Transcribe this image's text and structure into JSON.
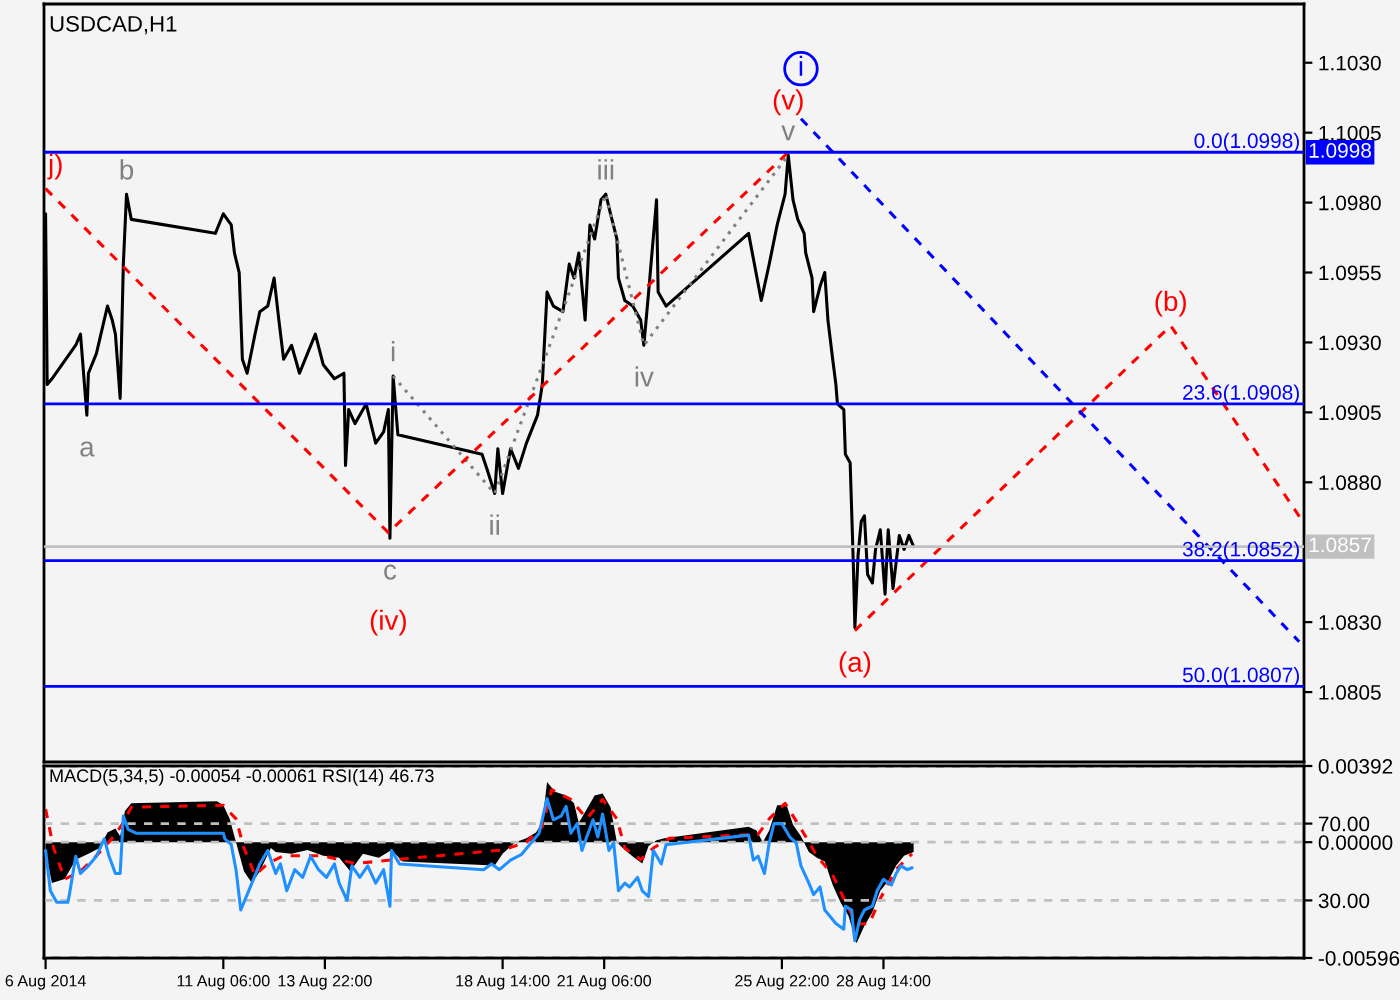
{
  "chart_data": [
    {
      "type": "line",
      "title": "USDCAD,H1",
      "tick_labels": "y",
      "xlim": [
        "2014-08-06T13:00",
        "2014-09-08T15:00"
      ],
      "ylim": [
        1.078,
        1.1051
      ],
      "yticks": [
        {
          "value": 1.103,
          "label": "1.1030"
        },
        1.1005,
        {
          "value": 1.098,
          "label": "1.0980"
        },
        1.0955,
        {
          "value": 1.093,
          "label": "1.0930"
        },
        1.0905,
        {
          "value": 1.088,
          "label": "1.0880"
        },
        {
          "value": 1.083,
          "label": "1.0830"
        },
        1.0805
      ],
      "ref_lines": [
        {
          "axis": "y",
          "value": 1.0998,
          "label": "0.0(1.0998)",
          "color": "#0000ff"
        },
        {
          "axis": "y",
          "value": 1.0908,
          "label": "23.6(1.0908)",
          "color": "#0000ff"
        },
        {
          "axis": "y",
          "value": 1.0852,
          "label": "38.2(1.0852)",
          "color": "#0000ff"
        },
        {
          "axis": "y",
          "value": 1.0807,
          "label": "50.0(1.0807)",
          "color": "#0000ff"
        },
        {
          "axis": "y",
          "value": 1.0857,
          "color": "#c0c0c0"
        }
      ],
      "series": [
        {
          "color": "#000000",
          "x": [
            "2014-08-06T14:00",
            "2014-08-06T15:00",
            "2014-08-06T18:00",
            "2014-08-07T09:00",
            "2014-08-07T12:00",
            "2014-08-07T16:00",
            "2014-08-07T17:00",
            "2014-08-07T22:00",
            "2014-08-08T05:00",
            "2014-08-08T08:00",
            "2014-08-08T10:00",
            "2014-08-08T13:00",
            "2014-08-08T15:00",
            "2014-08-08T17:00",
            "2014-08-08T20:00",
            "2014-08-11T01:00",
            "2014-08-11T06:00",
            "2014-08-11T11:00",
            "2014-08-11T13:00",
            "2014-08-11T16:00",
            "2014-08-11T18:00",
            "2014-08-11T21:00",
            "2014-08-12T02:00",
            "2014-08-12T05:00",
            "2014-08-12T10:00",
            "2014-08-12T14:00",
            "2014-08-12T17:00",
            "2014-08-12T20:00",
            "2014-08-13T01:00",
            "2014-08-13T06:00",
            "2014-08-13T11:00",
            "2014-08-13T16:00",
            "2014-08-13T21:00",
            "2014-08-14T04:00",
            "2014-08-14T10:00",
            "2014-08-14T11:00",
            "2014-08-14T13:00",
            "2014-08-14T17:00",
            "2014-08-15T00:00",
            "2014-08-15T06:00",
            "2014-08-15T11:00",
            "2014-08-15T14:00",
            "2014-08-15T15:00",
            "2014-08-15T17:00",
            "2014-08-15T20:00",
            "2014-08-18T01:00",
            "2014-08-18T04:00",
            "2014-08-18T09:00",
            "2014-08-18T11:00",
            "2014-08-18T14:00",
            "2014-08-18T19:00",
            "2014-08-19T00:00",
            "2014-08-19T05:00",
            "2014-08-19T12:00",
            "2014-08-19T15:00",
            "2014-08-19T18:00",
            "2014-08-19T22:00",
            "2014-08-20T04:00",
            "2014-08-20T08:00",
            "2014-08-20T11:00",
            "2014-08-20T14:00",
            "2014-08-20T18:00",
            "2014-08-20T21:00",
            "2014-08-21T00:00",
            "2014-08-21T04:00",
            "2014-08-21T07:00",
            "2014-08-21T10:00",
            "2014-08-21T14:00",
            "2014-08-21T15:00",
            "2014-08-21T19:00",
            "2014-08-22T00:00",
            "2014-08-22T05:00",
            "2014-08-22T07:00",
            "2014-08-22T10:00",
            "2014-08-22T15:00",
            "2014-08-22T16:00",
            "2014-08-22T21:00",
            "2014-08-25T01:00",
            "2014-08-25T04:00",
            "2014-08-25T09:00",
            "2014-08-25T14:00",
            "2014-08-25T19:00",
            "2014-08-26T00:00",
            "2014-08-26T02:00",
            "2014-08-26T05:00",
            "2014-08-26T08:00",
            "2014-08-26T12:00",
            "2014-08-26T13:00",
            "2014-08-26T17:00",
            "2014-08-26T18:00",
            "2014-08-26T22:00",
            "2014-08-27T01:00",
            "2014-08-27T03:00",
            "2014-08-27T06:00",
            "2014-08-27T08:00",
            "2014-08-27T09:00",
            "2014-08-27T13:00",
            "2014-08-27T14:00",
            "2014-08-27T17:00",
            "2014-08-27T19:00",
            "2014-08-27T20:00",
            "2014-08-27T22:00",
            "2014-08-28T00:00",
            "2014-08-28T02:00",
            "2014-08-28T04:00",
            "2014-08-28T07:00",
            "2014-08-28T09:00",
            "2014-08-28T12:00",
            "2014-08-28T15:00",
            "2014-08-28T17:00",
            "2014-08-28T20:00",
            "2014-08-29T00:00",
            "2014-08-29T03:00",
            "2014-08-29T06:00",
            "2014-08-29T09:00"
          ],
          "values": [
            1.0976,
            1.0915,
            1.0917,
            1.0929,
            1.0933,
            1.0904,
            1.0919,
            1.0926,
            1.0943,
            1.0938,
            1.0933,
            1.091,
            1.0958,
            1.0983,
            1.0974,
            1.0969,
            1.0976,
            1.0972,
            1.0962,
            1.0955,
            1.0924,
            1.0919,
            1.0933,
            1.0941,
            1.0943,
            1.0953,
            1.0938,
            1.0924,
            1.0929,
            1.0919,
            1.0926,
            1.0933,
            1.0922,
            1.0917,
            1.0919,
            1.0886,
            1.0906,
            1.0901,
            1.0908,
            1.0894,
            1.0898,
            1.0906,
            1.086,
            1.0918,
            1.0897,
            1.089,
            1.0885,
            1.0876,
            1.0892,
            1.0876,
            1.0892,
            1.0885,
            1.0894,
            1.0904,
            1.0915,
            1.0948,
            1.0943,
            1.0941,
            1.0958,
            1.0953,
            1.0962,
            1.0938,
            1.0972,
            1.0967,
            1.0981,
            1.0983,
            1.0976,
            1.0967,
            1.0953,
            1.0945,
            1.0943,
            1.0938,
            1.0929,
            1.0948,
            1.0981,
            1.0948,
            1.0943,
            1.0969,
            1.096,
            1.0945,
            1.0958,
            1.0972,
            1.0983,
            1.0997,
            1.0981,
            1.0974,
            1.0969,
            1.0962,
            1.0953,
            1.0941,
            1.095,
            1.0955,
            1.0938,
            1.0924,
            1.0915,
            1.0908,
            1.0906,
            1.089,
            1.0887,
            1.0851,
            1.0828,
            1.0854,
            1.0866,
            1.0868,
            1.0847,
            1.0844,
            1.0856,
            1.0863,
            1.084,
            1.0863,
            1.0842,
            1.0861,
            1.0856,
            1.0861,
            1.0857
          ]
        },
        {
          "type": "line",
          "line_style": "dotted",
          "color": "#808080",
          "x": [
            "2014-08-15T17:00",
            "2014-08-18T09:00",
            "2014-08-21T07:00",
            "2014-08-22T07:00",
            "2014-08-26T02:00"
          ],
          "values": [
            1.0918,
            1.0876,
            1.0983,
            1.0929,
            1.0997
          ]
        },
        {
          "type": "line",
          "line_style": "dashed",
          "color": "#ff0000",
          "x": [
            "2014-08-06T14:00",
            "2014-08-15T14:00",
            "2014-08-26T02:00"
          ],
          "values": [
            1.0985,
            1.0862,
            1.0998
          ]
        },
        {
          "type": "line",
          "line_style": "dashed",
          "color": "#ff0000",
          "x": [
            "2014-08-27T20:00",
            "2014-09-05T03:00",
            "2014-09-08T13:00"
          ],
          "values": [
            1.0827,
            1.0936,
            1.0867
          ]
        },
        {
          "type": "line",
          "line_style": "dashed",
          "color": "#0000ff",
          "x": [
            "2014-08-26T10:00",
            "2014-09-08T12:00"
          ],
          "values": [
            1.101,
            1.0823
          ]
        }
      ],
      "annotations": [
        {
          "text": "j)",
          "x": "2014-08-06T14:00",
          "y": 1.0985
        },
        {
          "text": "b",
          "x": "2014-08-08T17:00",
          "y": 1.0983
        },
        {
          "text": "a",
          "x": "2014-08-07T16:00",
          "y": 1.0904
        },
        {
          "text": "i",
          "x": "2014-08-15T17:00",
          "y": 1.0918
        },
        {
          "text": "c",
          "x": "2014-08-15T15:00",
          "y": 1.086
        },
        {
          "text": "(iv)",
          "x": "2014-08-15T14:00",
          "y": 1.0862
        },
        {
          "text": "ii",
          "x": "2014-08-18T09:00",
          "y": 1.0876
        },
        {
          "text": "iii",
          "x": "2014-08-21T07:00",
          "y": 1.0983
        },
        {
          "text": "iv",
          "x": "2014-08-22T07:00",
          "y": 1.0929
        },
        {
          "text": "v",
          "x": "2014-08-26T02:00",
          "y": 1.0997
        },
        {
          "text": "(v)",
          "x": "2014-08-26T02:00",
          "y": 1.0998
        },
        {
          "text": "i",
          "x": "2014-08-26T10:00",
          "y": 1.101
        },
        {
          "text": "(a)",
          "x": "2014-08-27T20:00",
          "y": 1.0827
        },
        {
          "text": "(b)",
          "x": "2014-09-05T03:00",
          "y": 1.0936
        },
        {
          "text": "1.0998",
          "x": "2014-09-08T15:00",
          "y": 1.0998
        },
        {
          "text": "1.0857",
          "x": "2014-09-08T15:00",
          "y": 1.0857
        }
      ]
    },
    {
      "type": "area",
      "title": "MACD(5,34,5) -0.00054 -0.00061 RSI(14) 46.73",
      "grid": "y",
      "xlim": [
        "2014-08-06T13:00",
        "2014-09-08T15:00"
      ],
      "xticks": [
        {
          "value": "2014-08-06T14:00",
          "label": "6 Aug 2014"
        },
        {
          "value": "2014-08-11T06:00",
          "label": "11 Aug 06:00"
        },
        {
          "value": "2014-08-13T22:00",
          "label": "13 Aug 22:00"
        },
        {
          "value": "2014-08-18T14:00",
          "label": "18 Aug 14:00"
        },
        {
          "value": "2014-08-21T06:00",
          "label": "21 Aug 06:00"
        },
        {
          "value": "2014-08-25T22:00",
          "label": "25 Aug 22:00"
        },
        {
          "value": "2014-08-28T14:00",
          "label": "28 Aug 14:00"
        }
      ],
      "ylim": [
        -0.00596,
        0.00392
      ],
      "yticks": [
        0.00392,
        {
          "value": 0,
          "label": "0.00000"
        },
        -0.00596
      ],
      "y2lim": [
        0,
        100
      ],
      "y2ticks": [
        {
          "value": 70,
          "label": "70.00"
        },
        {
          "value": 30,
          "label": "30.00"
        }
      ],
      "series": [
        {
          "color": "#000000",
          "x": [
            "2014-08-06T14:00",
            "2014-08-06T18:00",
            "2014-08-07T02:00",
            "2014-08-07T09:00",
            "2014-08-07T17:00",
            "2014-08-08T00:00",
            "2014-08-08T05:00",
            "2014-08-08T10:00",
            "2014-08-08T13:00",
            "2014-08-08T16:00",
            "2014-08-08T20:00",
            "2014-08-11T02:00",
            "2014-08-11T06:00",
            "2014-08-11T10:00",
            "2014-08-11T14:00",
            "2014-08-11T19:00",
            "2014-08-12T00:00",
            "2014-08-12T05:00",
            "2014-08-12T12:00",
            "2014-08-12T15:00",
            "2014-08-13T01:00",
            "2014-08-13T11:00",
            "2014-08-13T21:00",
            "2014-08-14T07:00",
            "2014-08-14T14:00",
            "2014-08-14T22:00",
            "2014-08-15T08:00",
            "2014-08-15T16:00",
            "2014-08-15T23:00",
            "2014-08-18T09:00",
            "2014-08-18T14:00",
            "2014-08-18T22:00",
            "2014-08-19T05:00",
            "2014-08-19T11:00",
            "2014-08-19T15:00",
            "2014-08-19T18:00",
            "2014-08-19T23:00",
            "2014-08-20T06:00",
            "2014-08-20T11:00",
            "2014-08-20T14:00",
            "2014-08-20T19:00",
            "2014-08-21T00:00",
            "2014-08-21T05:00",
            "2014-08-21T10:00",
            "2014-08-21T14:00",
            "2014-08-21T19:00",
            "2014-08-22T01:00",
            "2014-08-22T06:00",
            "2014-08-22T10:00",
            "2014-08-22T15:00",
            "2014-08-22T20:00",
            "2014-08-25T01:00",
            "2014-08-25T06:00",
            "2014-08-25T10:00",
            "2014-08-25T14:00",
            "2014-08-25T19:00",
            "2014-08-26T01:00",
            "2014-08-26T05:00",
            "2014-08-26T10:00",
            "2014-08-26T15:00",
            "2014-08-26T20:00",
            "2014-08-27T01:00",
            "2014-08-27T06:00",
            "2014-08-27T11:00",
            "2014-08-27T16:00",
            "2014-08-27T21:00",
            "2014-08-28T02:00",
            "2014-08-28T07:00",
            "2014-08-28T12:00",
            "2014-08-28T17:00",
            "2014-08-28T22:00",
            "2014-08-29T03:00",
            "2014-08-29T09:00"
          ],
          "values": [
            -0.0005,
            -0.0021,
            -0.0019,
            -0.0009,
            -0.0006,
            -0.0003,
            0.0005,
            0.0007,
            0.0003,
            0.0016,
            0.002,
            0.0021,
            0.0019,
            0.0012,
            0.0,
            -0.0015,
            -0.0021,
            -0.0015,
            -0.0003,
            -0.0005,
            -0.0006,
            -0.0004,
            -0.0007,
            -0.0008,
            -0.0015,
            -0.0006,
            -0.0008,
            -0.0004,
            -0.001,
            -0.0012,
            -0.0006,
            0.0,
            0.0002,
            0.0005,
            0.001,
            0.0031,
            0.0026,
            0.0024,
            0.002,
            0.001,
            0.0017,
            0.0024,
            0.0025,
            0.0018,
            0.0,
            -0.0004,
            -0.0008,
            -0.0011,
            -0.0002,
            0.0001,
            0.0002,
            0.0008,
            0.0006,
            0.0,
            0.0006,
            0.0019,
            0.0019,
            0.0009,
            0.0003,
            -0.0005,
            -0.0008,
            -0.001,
            -0.0022,
            -0.0031,
            -0.0038,
            -0.0052,
            -0.0043,
            -0.0036,
            -0.0025,
            -0.002,
            -0.0012,
            -0.0007,
            -0.0005
          ]
        },
        {
          "type": "line",
          "line_style": "dashed",
          "color": "#ff0000",
          "x": [
            "2014-08-06T14:00",
            "2014-08-06T19:00",
            "2014-08-07T02:00",
            "2014-08-07T12:00",
            "2014-08-07T22:00",
            "2014-08-08T08:00",
            "2014-08-08T15:00",
            "2014-08-08T20:00",
            "2014-08-11T06:00",
            "2014-08-11T14:00",
            "2014-08-11T19:00",
            "2014-08-12T02:00",
            "2014-08-12T10:00",
            "2014-08-12T20:00",
            "2014-08-13T21:00",
            "2014-08-14T17:00",
            "2014-08-15T18:00",
            "2014-08-18T14:00",
            "2014-08-19T05:00",
            "2014-08-19T15:00",
            "2014-08-19T21:00",
            "2014-08-20T09:00",
            "2014-08-20T19:00",
            "2014-08-21T05:00",
            "2014-08-21T14:00",
            "2014-08-21T19:00",
            "2014-08-22T05:00",
            "2014-08-22T13:00",
            "2014-08-22T23:00",
            "2014-08-25T07:00",
            "2014-08-25T14:00",
            "2014-08-26T00:00",
            "2014-08-26T10:00",
            "2014-08-26T20:00",
            "2014-08-27T06:00",
            "2014-08-27T16:00",
            "2014-08-27T21:00",
            "2014-08-28T05:00",
            "2014-08-28T12:00",
            "2014-08-28T22:00",
            "2014-08-29T08:00"
          ],
          "values": [
            0.0017,
            -0.0003,
            -0.0019,
            -0.0015,
            -0.0007,
            0.0002,
            0.001,
            0.0018,
            0.0019,
            0.0012,
            -0.0003,
            -0.0017,
            -0.0011,
            -0.0007,
            -0.0007,
            -0.0011,
            -0.0009,
            -0.0004,
            0.0,
            0.0008,
            0.0027,
            0.0022,
            0.0012,
            0.0022,
            0.0012,
            -0.0003,
            -0.0009,
            -0.0003,
            0.0002,
            0.0004,
            0.0012,
            0.002,
            0.0007,
            -0.0007,
            -0.0017,
            -0.0034,
            -0.0042,
            -0.0042,
            -0.0029,
            -0.0014,
            -0.0006
          ]
        },
        {
          "type": "line",
          "axis": "y2",
          "color": "#1e90ff",
          "x": [
            "2014-08-06T14:00",
            "2014-08-06T17:00",
            "2014-08-06T21:00",
            "2014-08-07T04:00",
            "2014-08-07T05:00",
            "2014-08-07T09:00",
            "2014-08-07T12:00",
            "2014-08-07T17:00",
            "2014-08-07T22:00",
            "2014-08-08T03:00",
            "2014-08-08T06:00",
            "2014-08-08T10:00",
            "2014-08-08T13:00",
            "2014-08-08T15:00",
            "2014-08-08T18:00",
            "2014-08-08T23:00",
            "2014-08-11T06:00",
            "2014-08-11T07:00",
            "2014-08-11T11:00",
            "2014-08-11T14:00",
            "2014-08-11T17:00",
            "2014-08-11T21:00",
            "2014-08-12T00:00",
            "2014-08-12T05:00",
            "2014-08-12T10:00",
            "2014-08-12T15:00",
            "2014-08-12T18:00",
            "2014-08-12T22:00",
            "2014-08-13T03:00",
            "2014-08-13T08:00",
            "2014-08-13T13:00",
            "2014-08-13T18:00",
            "2014-08-13T23:00",
            "2014-08-14T04:00",
            "2014-08-14T07:00",
            "2014-08-14T12:00",
            "2014-08-14T15:00",
            "2014-08-14T20:00",
            "2014-08-15T01:00",
            "2014-08-15T06:00",
            "2014-08-15T11:00",
            "2014-08-15T15:00",
            "2014-08-15T16:00",
            "2014-08-15T21:00",
            "2014-08-18T02:00",
            "2014-08-18T07:00",
            "2014-08-18T12:00",
            "2014-08-18T19:00",
            "2014-08-19T02:00",
            "2014-08-19T08:00",
            "2014-08-19T13:00",
            "2014-08-19T18:00",
            "2014-08-19T22:00",
            "2014-08-20T03:00",
            "2014-08-20T06:00",
            "2014-08-20T09:00",
            "2014-08-20T13:00",
            "2014-08-20T16:00",
            "2014-08-20T19:00",
            "2014-08-20T23:00",
            "2014-08-21T02:00",
            "2014-08-21T05:00",
            "2014-08-21T09:00",
            "2014-08-21T12:00",
            "2014-08-21T15:00",
            "2014-08-21T19:00",
            "2014-08-21T22:00",
            "2014-08-22T03:00",
            "2014-08-22T06:00",
            "2014-08-22T10:00",
            "2014-08-22T13:00",
            "2014-08-22T18:00",
            "2014-08-22T21:00",
            "2014-08-25T01:00",
            "2014-08-25T04:00",
            "2014-08-25T07:00",
            "2014-08-25T11:00",
            "2014-08-25T14:00",
            "2014-08-25T17:00",
            "2014-08-25T22:00",
            "2014-08-26T03:00",
            "2014-08-26T07:00",
            "2014-08-26T10:00",
            "2014-08-26T15:00",
            "2014-08-26T18:00",
            "2014-08-26T22:00",
            "2014-08-27T01:00",
            "2014-08-27T04:00",
            "2014-08-27T08:00",
            "2014-08-27T13:00",
            "2014-08-27T14:00",
            "2014-08-27T18:00",
            "2014-08-27T19:00",
            "2014-08-27T20:00",
            "2014-08-27T23:00",
            "2014-08-28T02:00",
            "2014-08-28T07:00",
            "2014-08-28T10:00",
            "2014-08-28T14:00",
            "2014-08-28T19:00",
            "2014-08-28T22:00",
            "2014-08-29T01:00",
            "2014-08-29T05:00",
            "2014-08-29T08:00"
          ],
          "values": [
            56,
            35,
            29,
            29,
            33,
            53,
            44,
            48,
            53,
            62,
            53,
            44,
            44,
            74,
            67,
            65,
            65,
            62,
            59,
            46,
            25,
            33,
            39,
            49,
            56,
            44,
            49,
            35,
            46,
            42,
            53,
            46,
            42,
            49,
            39,
            30,
            48,
            42,
            48,
            39,
            46,
            27,
            56,
            49,
            46,
            49,
            46,
            51,
            54,
            60,
            65,
            83,
            72,
            74,
            79,
            65,
            70,
            56,
            63,
            72,
            63,
            75,
            56,
            60,
            35,
            39,
            37,
            42,
            35,
            32,
            56,
            49,
            59,
            64,
            51,
            53,
            44,
            60,
            70,
            70,
            63,
            60,
            48,
            39,
            33,
            37,
            25,
            22,
            18,
            15,
            27,
            25,
            15,
            9,
            20,
            25,
            27,
            35,
            41,
            38,
            44,
            48,
            46,
            47
          ]
        }
      ]
    }
  ]
}
